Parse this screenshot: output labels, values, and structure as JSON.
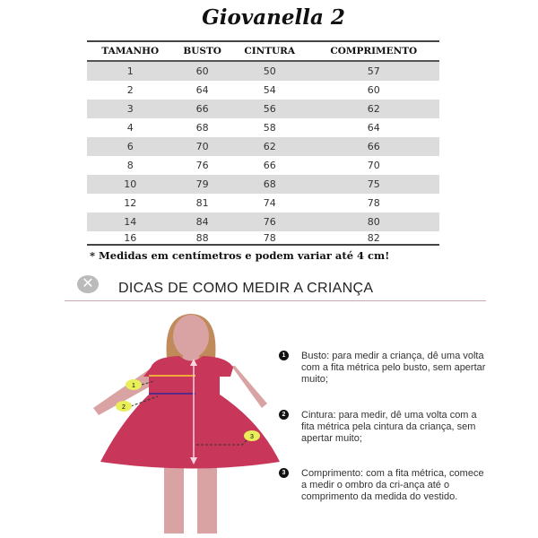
{
  "title": "Giovanella 2",
  "table": {
    "headers": [
      "TAMANHO",
      "BUSTO",
      "CINTURA",
      "COMPRIMENTO"
    ],
    "rows": [
      [
        "1",
        "60",
        "50",
        "57"
      ],
      [
        "2",
        "64",
        "54",
        "60"
      ],
      [
        "3",
        "66",
        "56",
        "62"
      ],
      [
        "4",
        "68",
        "58",
        "64"
      ],
      [
        "6",
        "70",
        "62",
        "66"
      ],
      [
        "8",
        "76",
        "66",
        "70"
      ],
      [
        "10",
        "79",
        "68",
        "75"
      ],
      [
        "12",
        "81",
        "74",
        "78"
      ],
      [
        "14",
        "84",
        "76",
        "80"
      ],
      [
        "16",
        "88",
        "78",
        "82"
      ]
    ]
  },
  "note": "* Medidas em centímetros e podem variar até 4 cm!",
  "tips_section": {
    "title": "DICAS DE COMO MEDIR A CRIANÇA",
    "close_icon": "x-circle-icon",
    "figure_labels": [
      "1",
      "2",
      "3"
    ],
    "tips": [
      {
        "num": "1",
        "text": "Busto: para medir a criança, dê uma volta com a fita métrica pelo busto, sem apertar muito;"
      },
      {
        "num": "2",
        "text": "Cintura: para medir, dê uma volta com a fita métrica pela cintura da criança, sem apertar muito;"
      },
      {
        "num": "3",
        "text": "Comprimento: com a fita métrica, comece a medir o ombro da cri-ança até o comprimento da medida do vestido."
      }
    ]
  },
  "colors": {
    "dress": "#c8375a",
    "skin": "#d9a3a3",
    "hair": "#c08a5a",
    "label_marker": "#e8ef5a",
    "row_shade": "#dcdcdc"
  }
}
